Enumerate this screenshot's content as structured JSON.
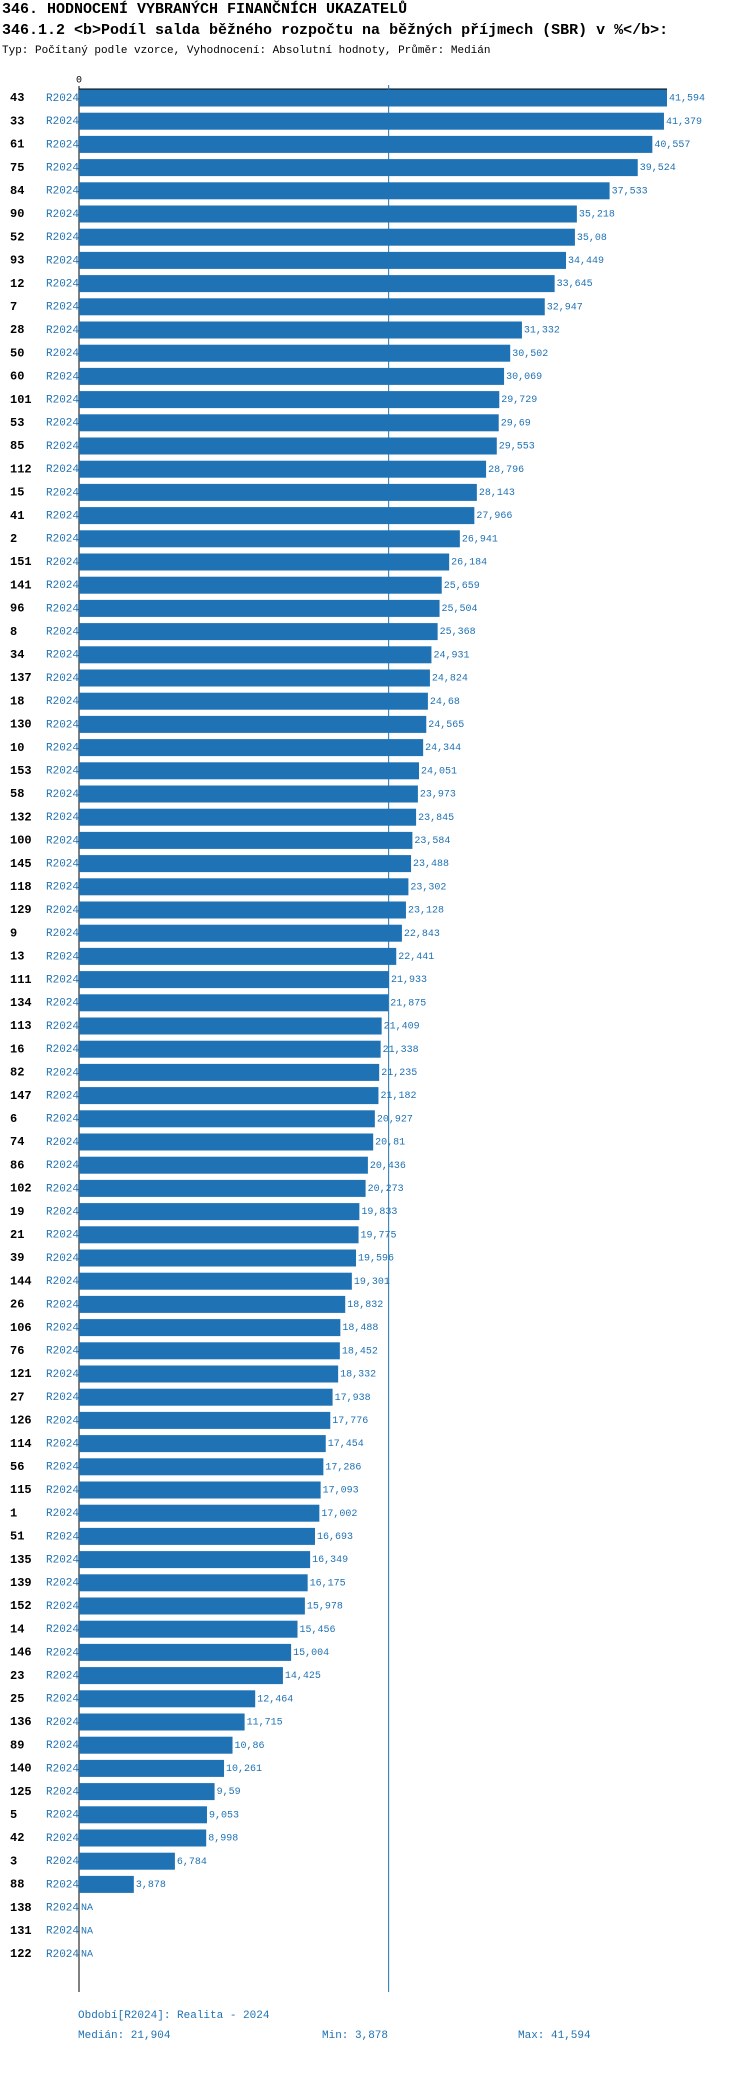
{
  "chart_data": {
    "type": "bar",
    "orientation": "horizontal",
    "title": "346. HODNOCENÍ VYBRANÝCH FINANČNÍCH UKAZATELŮ",
    "subtitle": "346.1.2 <b>Podíl salda běžného rozpočtu na běžných příjmech (SBR) v %</b>:",
    "description": "Typ: Počítaný podle vzorce, Vyhodnocení: Absolutní hodnoty, Průměr: Medián",
    "period": "R2024",
    "color": "#1f72b4",
    "xlim": [
      0,
      41.594
    ],
    "xticks": [
      0
    ],
    "median": 21.904,
    "categories": [
      "43",
      "33",
      "61",
      "75",
      "84",
      "90",
      "52",
      "93",
      "12",
      "7",
      "28",
      "50",
      "60",
      "101",
      "53",
      "85",
      "112",
      "15",
      "41",
      "2",
      "151",
      "141",
      "96",
      "8",
      "34",
      "137",
      "18",
      "130",
      "10",
      "153",
      "58",
      "132",
      "100",
      "145",
      "118",
      "129",
      "9",
      "13",
      "111",
      "134",
      "113",
      "16",
      "82",
      "147",
      "6",
      "74",
      "86",
      "102",
      "19",
      "21",
      "39",
      "144",
      "26",
      "106",
      "76",
      "121",
      "27",
      "126",
      "114",
      "56",
      "115",
      "1",
      "51",
      "135",
      "139",
      "152",
      "14",
      "146",
      "23",
      "25",
      "136",
      "89",
      "140",
      "125",
      "5",
      "42",
      "3",
      "88",
      "138",
      "131",
      "122"
    ],
    "values": [
      41.594,
      41.379,
      40.557,
      39.524,
      37.533,
      35.218,
      35.08,
      34.449,
      33.645,
      32.947,
      31.332,
      30.502,
      30.069,
      29.729,
      29.69,
      29.553,
      28.796,
      28.143,
      27.966,
      26.941,
      26.184,
      25.659,
      25.504,
      25.368,
      24.931,
      24.824,
      24.68,
      24.565,
      24.344,
      24.051,
      23.973,
      23.845,
      23.584,
      23.488,
      23.302,
      23.128,
      22.843,
      22.441,
      21.933,
      21.875,
      21.409,
      21.338,
      21.235,
      21.182,
      20.927,
      20.81,
      20.436,
      20.273,
      19.833,
      19.775,
      19.596,
      19.301,
      18.832,
      18.488,
      18.452,
      18.332,
      17.938,
      17.776,
      17.454,
      17.286,
      17.093,
      17.002,
      16.693,
      16.349,
      16.175,
      15.978,
      15.456,
      15.004,
      14.425,
      12.464,
      11.715,
      10.86,
      10.261,
      9.59,
      9.053,
      8.998,
      6.784,
      3.878,
      null,
      null,
      null
    ],
    "value_labels": [
      "41,594",
      "41,379",
      "40,557",
      "39,524",
      "37,533",
      "35,218",
      "35,08",
      "34,449",
      "33,645",
      "32,947",
      "31,332",
      "30,502",
      "30,069",
      "29,729",
      "29,69",
      "29,553",
      "28,796",
      "28,143",
      "27,966",
      "26,941",
      "26,184",
      "25,659",
      "25,504",
      "25,368",
      "24,931",
      "24,824",
      "24,68",
      "24,565",
      "24,344",
      "24,051",
      "23,973",
      "23,845",
      "23,584",
      "23,488",
      "23,302",
      "23,128",
      "22,843",
      "22,441",
      "21,933",
      "21,875",
      "21,409",
      "21,338",
      "21,235",
      "21,182",
      "20,927",
      "20,81",
      "20,436",
      "20,273",
      "19,833",
      "19,775",
      "19,596",
      "19,301",
      "18,832",
      "18,488",
      "18,452",
      "18,332",
      "17,938",
      "17,776",
      "17,454",
      "17,286",
      "17,093",
      "17,002",
      "16,693",
      "16,349",
      "16,175",
      "15,978",
      "15,456",
      "15,004",
      "14,425",
      "12,464",
      "11,715",
      "10,86",
      "10,261",
      "9,59",
      "9,053",
      "8,998",
      "6,784",
      "3,878",
      "NA",
      "NA",
      "NA"
    ],
    "footer": {
      "period": "Období[R2024]: Realita - 2024",
      "median": "Medián: 21,904",
      "min": "Min: 3,878",
      "max": "Max: 41,594"
    }
  }
}
